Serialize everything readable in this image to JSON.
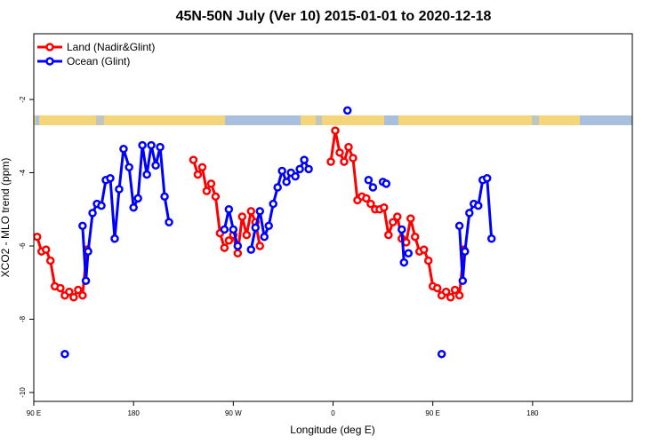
{
  "chart_data": {
    "type": "line",
    "title": "45N-50N July (Ver 10)   2015-01-01 to 2020-12-18",
    "xlabel": "Longitude (deg E)",
    "ylabel": "XCO2 - MLO trend (ppm)",
    "xlim": [
      90,
      630
    ],
    "ylim": [
      -10,
      -1.8
    ],
    "x_ticks": [
      {
        "value": 90,
        "label": "90 E"
      },
      {
        "value": 180,
        "label": "180"
      },
      {
        "value": 270,
        "label": "90 W"
      },
      {
        "value": 360,
        "label": "0"
      },
      {
        "value": 450,
        "label": "90 E"
      },
      {
        "value": 540,
        "label": "180"
      }
    ],
    "y_ticks": [
      {
        "value": -2,
        "label": "-2"
      },
      {
        "value": -4,
        "label": "-4"
      },
      {
        "value": -6,
        "label": "-6"
      },
      {
        "value": -8,
        "label": "-8"
      },
      {
        "value": -10,
        "label": "-10"
      }
    ],
    "grid": false,
    "legend_position": "top-left",
    "series": [
      {
        "name": "Land (Nadir&Glint)",
        "color": "#ff0000",
        "segments": [
          [
            [
              93,
              -5.75
            ],
            [
              97,
              -6.15
            ],
            [
              101,
              -6.1
            ],
            [
              105,
              -6.4
            ],
            [
              109,
              -7.1
            ],
            [
              114,
              -7.15
            ],
            [
              118,
              -7.35
            ],
            [
              122,
              -7.25
            ],
            [
              126,
              -7.4
            ],
            [
              130,
              -7.2
            ],
            [
              134,
              -7.35
            ],
            [
              138,
              -6.1
            ]
          ],
          [
            [
              234,
              -3.65
            ],
            [
              238,
              -4.05
            ],
            [
              242,
              -3.85
            ],
            [
              246,
              -4.5
            ],
            [
              250,
              -4.3
            ],
            [
              254,
              -4.65
            ],
            [
              258,
              -5.65
            ],
            [
              262,
              -6.05
            ],
            [
              266,
              -5.85
            ],
            [
              270,
              -5.7
            ],
            [
              274,
              -6.2
            ],
            [
              278,
              -5.2
            ],
            [
              282,
              -5.7
            ],
            [
              286,
              -5.05
            ],
            [
              290,
              -5.35
            ],
            [
              294,
              -6.0
            ]
          ],
          [
            [
              358,
              -3.7
            ],
            [
              362,
              -2.85
            ],
            [
              366,
              -3.45
            ],
            [
              370,
              -3.7
            ],
            [
              374,
              -3.3
            ],
            [
              378,
              -3.6
            ],
            [
              382,
              -4.75
            ],
            [
              386,
              -4.65
            ],
            [
              390,
              -4.7
            ],
            [
              394,
              -4.85
            ],
            [
              398,
              -5.0
            ],
            [
              402,
              -5.0
            ],
            [
              406,
              -4.95
            ],
            [
              410,
              -5.7
            ],
            [
              414,
              -5.35
            ],
            [
              418,
              -5.2
            ],
            [
              422,
              -5.8
            ],
            [
              426,
              -5.9
            ],
            [
              430,
              -5.25
            ],
            [
              434,
              -5.75
            ],
            [
              438,
              -6.15
            ],
            [
              442,
              -6.1
            ],
            [
              446,
              -6.4
            ],
            [
              450,
              -7.1
            ],
            [
              454,
              -7.15
            ],
            [
              458,
              -7.35
            ],
            [
              462,
              -7.25
            ],
            [
              466,
              -7.4
            ],
            [
              470,
              -7.2
            ],
            [
              474,
              -7.35
            ],
            [
              478,
              -6.1
            ]
          ]
        ]
      },
      {
        "name": "Ocean (Glint)",
        "color": "#0000ff",
        "segments": [
          [
            [
              118,
              -8.95
            ]
          ],
          [
            [
              134,
              -5.45
            ],
            [
              137,
              -6.95
            ],
            [
              139,
              -6.15
            ],
            [
              143,
              -5.1
            ],
            [
              147,
              -4.85
            ],
            [
              151,
              -4.9
            ],
            [
              155,
              -4.2
            ],
            [
              159,
              -4.15
            ],
            [
              163,
              -5.8
            ],
            [
              167,
              -4.45
            ],
            [
              171,
              -3.35
            ],
            [
              176,
              -3.85
            ],
            [
              180,
              -4.95
            ],
            [
              184,
              -4.7
            ],
            [
              188,
              -3.25
            ],
            [
              192,
              -4.05
            ],
            [
              196,
              -3.25
            ],
            [
              200,
              -3.8
            ],
            [
              204,
              -3.3
            ],
            [
              208,
              -4.65
            ],
            [
              212,
              -5.35
            ]
          ],
          [
            [
              262,
              -5.55
            ],
            [
              266,
              -5.0
            ],
            [
              270,
              -5.55
            ],
            [
              274,
              -6.0
            ]
          ],
          [
            [
              286,
              -6.1
            ],
            [
              290,
              -5.5
            ],
            [
              294,
              -5.05
            ],
            [
              298,
              -5.75
            ],
            [
              302,
              -5.45
            ],
            [
              306,
              -4.85
            ],
            [
              310,
              -4.4
            ],
            [
              314,
              -3.95
            ],
            [
              318,
              -4.25
            ],
            [
              322,
              -4.0
            ],
            [
              326,
              -4.1
            ],
            [
              330,
              -3.9
            ],
            [
              334,
              -3.65
            ],
            [
              338,
              -3.9
            ]
          ],
          [
            [
              373,
              -2.3
            ]
          ],
          [
            [
              392,
              -4.2
            ],
            [
              396,
              -4.4
            ]
          ],
          [
            [
              405,
              -4.25
            ],
            [
              408,
              -4.3
            ]
          ],
          [
            [
              422,
              -5.55
            ],
            [
              424,
              -6.45
            ]
          ],
          [
            [
              428,
              -6.2
            ]
          ],
          [
            [
              458,
              -8.95
            ]
          ],
          [
            [
              474,
              -5.45
            ],
            [
              477,
              -6.95
            ],
            [
              479,
              -6.15
            ],
            [
              483,
              -5.1
            ],
            [
              487,
              -4.85
            ],
            [
              491,
              -4.9
            ],
            [
              495,
              -4.2
            ],
            [
              499,
              -4.15
            ],
            [
              503,
              -5.8
            ]
          ]
        ]
      }
    ]
  },
  "map_strip": {
    "land_color": "#f5d57a",
    "ocean_color": "#a8bfdf"
  }
}
